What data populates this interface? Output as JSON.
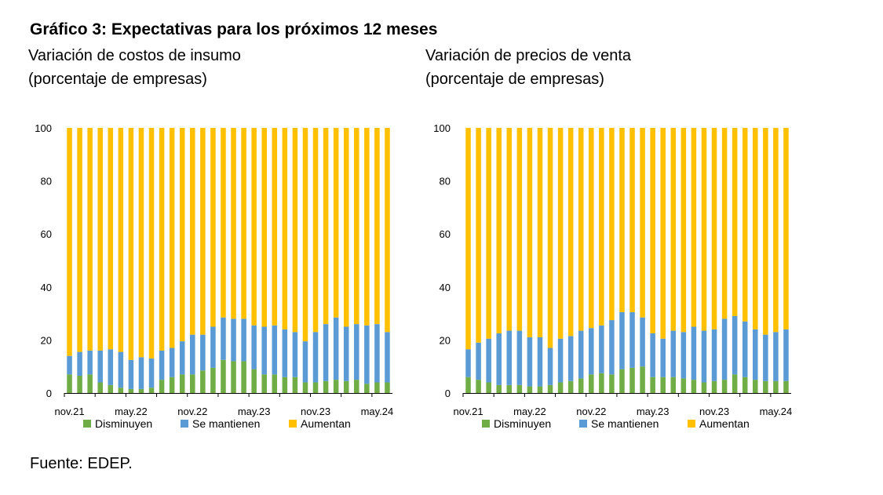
{
  "title": "Gráfico 3: Expectativas para los próximos 12 meses",
  "source": "Fuente: EDEP.",
  "colors": {
    "Disminuyen": "#70ad47",
    "Se mantienen": "#5b9bd5",
    "Aumentan": "#ffc000"
  },
  "chart_data": [
    {
      "type": "bar",
      "stacked": true,
      "title": "Variación de costos de insumo",
      "subtitle": "(porcentaje de empresas)",
      "ylim": [
        0,
        100
      ],
      "yticks": [
        "0",
        "20",
        "40",
        "60",
        "80",
        "100"
      ],
      "xtick_labels": [
        "nov.21",
        "may.22",
        "nov.22",
        "may.23",
        "nov.23",
        "may.24"
      ],
      "xtick_positions": [
        0,
        6,
        12,
        18,
        24,
        30
      ],
      "legend": [
        "Disminuyen",
        "Se mantienen",
        "Aumentan"
      ],
      "legend_position": "bottom",
      "series": [
        {
          "name": "Disminuyen",
          "values": [
            7,
            6.5,
            7,
            4,
            3,
            2,
            1.5,
            1.5,
            2,
            5,
            6,
            7,
            7,
            8.5,
            9.5,
            12.5,
            12,
            12,
            9,
            7,
            7,
            6,
            6,
            4,
            4,
            4.5,
            5,
            4.5,
            5,
            3.5,
            4,
            4
          ]
        },
        {
          "name": "Se mantienen",
          "values": [
            7,
            9,
            9,
            12,
            13.5,
            13.5,
            11,
            12,
            11,
            11,
            11,
            12.5,
            15,
            13.5,
            15.5,
            16,
            16,
            16,
            16.5,
            18,
            18.5,
            18,
            17,
            15.5,
            19,
            21.5,
            23.5,
            20.5,
            21,
            22,
            22,
            19
          ]
        },
        {
          "name": "Aumentan",
          "values": [
            86,
            84.5,
            84,
            84,
            83.5,
            84.5,
            87.5,
            86.5,
            87,
            84,
            83,
            80.5,
            78,
            78,
            75,
            71.5,
            72,
            72,
            74.5,
            75,
            74.5,
            76,
            77,
            80.5,
            77,
            74,
            71.5,
            75,
            74,
            74.5,
            74,
            77
          ]
        }
      ]
    },
    {
      "type": "bar",
      "stacked": true,
      "title": "Variación de precios de venta",
      "subtitle": "(porcentaje de empresas)",
      "ylim": [
        0,
        100
      ],
      "yticks": [
        "0",
        "20",
        "40",
        "60",
        "80",
        "100"
      ],
      "xtick_labels": [
        "nov.21",
        "may.22",
        "nov.22",
        "may.23",
        "nov.23",
        "may.24"
      ],
      "xtick_positions": [
        0,
        6,
        12,
        18,
        24,
        30
      ],
      "legend": [
        "Disminuyen",
        "Se mantienen",
        "Aumentan"
      ],
      "legend_position": "bottom",
      "series": [
        {
          "name": "Disminuyen",
          "values": [
            6,
            5,
            4,
            3,
            3,
            3,
            2.5,
            2.5,
            3,
            4,
            4.5,
            5.5,
            7,
            7.5,
            7,
            9,
            9.5,
            10,
            6,
            6,
            6,
            5.5,
            5,
            4,
            4.5,
            5,
            7,
            6,
            5,
            4.5,
            4.5,
            4.5
          ]
        },
        {
          "name": "Se mantienen",
          "values": [
            10.5,
            14,
            16.5,
            19.5,
            20.5,
            20.5,
            18.5,
            18.5,
            14,
            16.5,
            17,
            18,
            17.5,
            18,
            20.5,
            21.5,
            21,
            18.5,
            16.5,
            14.5,
            17.5,
            17.5,
            20,
            19.5,
            19.5,
            23,
            22,
            21,
            19,
            17.5,
            18.5,
            19.5
          ]
        },
        {
          "name": "Aumentan",
          "values": [
            83.5,
            81,
            79.5,
            77.5,
            76.5,
            76.5,
            79,
            79,
            83,
            79.5,
            78.5,
            76.5,
            75.5,
            74.5,
            72.5,
            69.5,
            69.5,
            71.5,
            77.5,
            79.5,
            76.5,
            77,
            75,
            76.5,
            76,
            72,
            71,
            73,
            76,
            78,
            77,
            76
          ]
        }
      ]
    }
  ]
}
